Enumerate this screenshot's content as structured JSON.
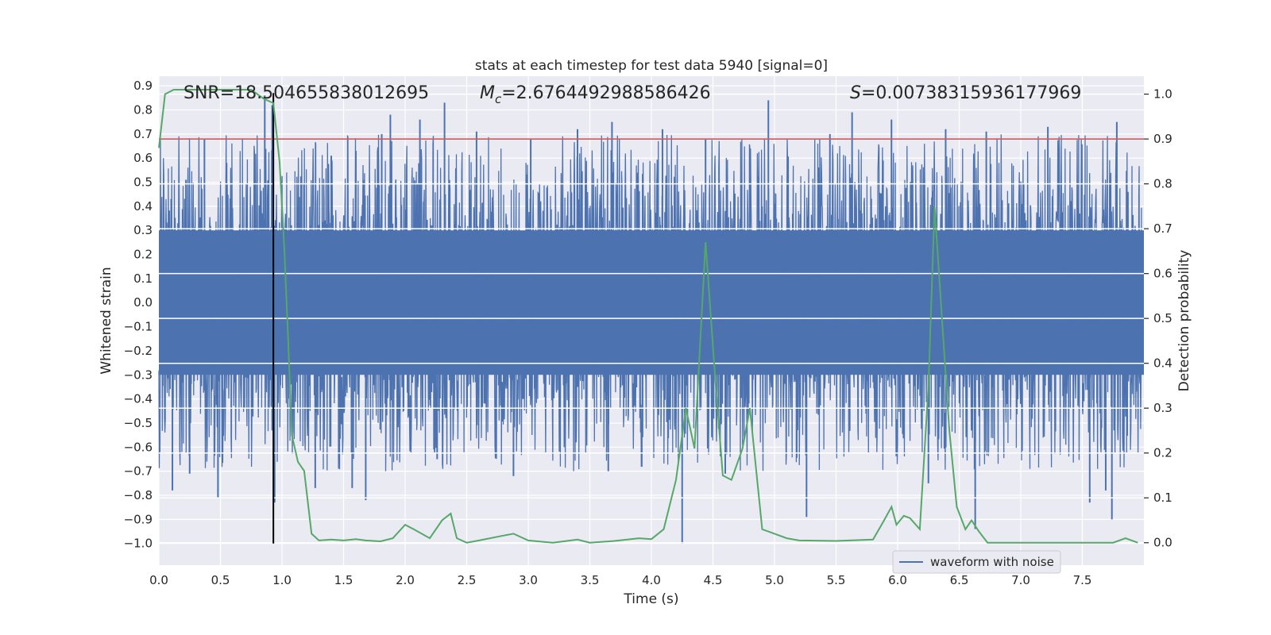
{
  "chart_data": {
    "type": "line",
    "title": "stats at each timestep for test data 5940 [signal=0]",
    "xlabel": "Time (s)",
    "ylabel": "Whitened strain",
    "y2label": "Detection probability",
    "xlim": [
      0.0,
      8.0
    ],
    "ylim": [
      -1.09,
      0.94
    ],
    "y2lim": [
      -0.05,
      1.04
    ],
    "x_ticks": [
      "0.0",
      "0.5",
      "1.0",
      "1.5",
      "2.0",
      "2.5",
      "3.0",
      "3.5",
      "4.0",
      "4.5",
      "5.0",
      "5.5",
      "6.0",
      "6.5",
      "7.0",
      "7.5"
    ],
    "x_tick_values": [
      0,
      0.5,
      1,
      1.5,
      2,
      2.5,
      3,
      3.5,
      4,
      4.5,
      5,
      5.5,
      6,
      6.5,
      7,
      7.5
    ],
    "y_ticks": [
      "0.9",
      "0.8",
      "0.7",
      "0.6",
      "0.5",
      "0.4",
      "0.3",
      "0.2",
      "0.1",
      "0.0",
      "−0.1",
      "−0.2",
      "−0.3",
      "−0.4",
      "−0.5",
      "−0.6",
      "−0.7",
      "−0.8",
      "−0.9",
      "−1.0"
    ],
    "y_tick_values": [
      0.9,
      0.8,
      0.7,
      0.6,
      0.5,
      0.4,
      0.3,
      0.2,
      0.1,
      0,
      -0.1,
      -0.2,
      -0.3,
      -0.4,
      -0.5,
      -0.6,
      -0.7,
      -0.8,
      -0.9,
      -1.0
    ],
    "y2_ticks": [
      "1.0",
      "0.9",
      "0.8",
      "0.7",
      "0.6",
      "0.5",
      "0.4",
      "0.3",
      "0.2",
      "0.1",
      "0.0"
    ],
    "y2_tick_values": [
      1.0,
      0.9,
      0.8,
      0.7,
      0.6,
      0.5,
      0.4,
      0.3,
      0.2,
      0.1,
      0.0
    ],
    "grid": true,
    "legend_position": "lower-right",
    "annotations": {
      "snr": "SNR=18.504655838012695",
      "mc_symbol": "M",
      "mc_sub": "c",
      "mc_value": "=2.6764492988586426",
      "s_symbol": "S",
      "s_value": "=0.00738315936177969"
    },
    "threshold": {
      "y2": 0.9,
      "color": "#c44e52"
    },
    "marker_line": {
      "x": 0.93,
      "y_from": -1.0,
      "y_to": 0.87,
      "color": "#000000"
    },
    "series": [
      {
        "name": "waveform with noise",
        "color": "#4c72b0",
        "kind": "dense-noise",
        "core_amplitude": 0.3,
        "spike_peaks": [
          {
            "x": 0.1,
            "y": 0.43
          },
          {
            "x": 0.22,
            "y": 0.51
          },
          {
            "x": 0.37,
            "y": 0.68
          },
          {
            "x": 0.55,
            "y": 0.58
          },
          {
            "x": 0.86,
            "y": 0.86
          },
          {
            "x": 0.92,
            "y": 0.82
          },
          {
            "x": 1.4,
            "y": 0.61
          },
          {
            "x": 1.6,
            "y": 0.63
          },
          {
            "x": 1.81,
            "y": 0.7
          },
          {
            "x": 1.88,
            "y": 0.78
          },
          {
            "x": 2.12,
            "y": 0.76
          },
          {
            "x": 2.32,
            "y": 0.83
          },
          {
            "x": 2.58,
            "y": 0.71
          },
          {
            "x": 3.02,
            "y": 0.68
          },
          {
            "x": 3.4,
            "y": 0.72
          },
          {
            "x": 3.68,
            "y": 0.75
          },
          {
            "x": 4.09,
            "y": 0.72
          },
          {
            "x": 4.44,
            "y": 0.68
          },
          {
            "x": 4.95,
            "y": 0.84
          },
          {
            "x": 5.45,
            "y": 0.7
          },
          {
            "x": 5.63,
            "y": 0.79
          },
          {
            "x": 5.95,
            "y": 0.76
          },
          {
            "x": 6.39,
            "y": 0.72
          },
          {
            "x": 6.72,
            "y": 0.71
          },
          {
            "x": 7.22,
            "y": 0.73
          },
          {
            "x": 7.78,
            "y": 0.75
          }
        ],
        "spike_troughs": [
          {
            "x": 0.11,
            "y": -0.78
          },
          {
            "x": 0.25,
            "y": -0.71
          },
          {
            "x": 0.48,
            "y": -0.81
          },
          {
            "x": 0.94,
            "y": -0.83
          },
          {
            "x": 1.27,
            "y": -0.77
          },
          {
            "x": 1.57,
            "y": -0.77
          },
          {
            "x": 1.68,
            "y": -0.82
          },
          {
            "x": 2.26,
            "y": -0.65
          },
          {
            "x": 2.88,
            "y": -0.72
          },
          {
            "x": 3.65,
            "y": -0.7
          },
          {
            "x": 4.25,
            "y": -1.0
          },
          {
            "x": 4.6,
            "y": -0.71
          },
          {
            "x": 5.26,
            "y": -0.89
          },
          {
            "x": 6.25,
            "y": -0.75
          },
          {
            "x": 6.63,
            "y": -0.94
          },
          {
            "x": 7.56,
            "y": -0.83
          },
          {
            "x": 7.69,
            "y": -0.78
          },
          {
            "x": 7.74,
            "y": -0.9
          }
        ]
      },
      {
        "name": "",
        "axis": "right",
        "color": "#55a868",
        "x": [
          0.0,
          0.05,
          0.12,
          0.6,
          0.75,
          0.85,
          0.93,
          0.98,
          1.02,
          1.05,
          1.08,
          1.13,
          1.18,
          1.24,
          1.3,
          1.4,
          1.5,
          1.6,
          1.68,
          1.8,
          1.9,
          2.0,
          2.07,
          2.2,
          2.3,
          2.37,
          2.42,
          2.5,
          2.6,
          2.78,
          2.88,
          3.0,
          3.2,
          3.4,
          3.5,
          3.7,
          3.9,
          4.0,
          4.1,
          4.2,
          4.28,
          4.35,
          4.44,
          4.52,
          4.58,
          4.65,
          4.74,
          4.8,
          4.9,
          5.0,
          5.1,
          5.2,
          5.5,
          5.8,
          5.88,
          5.95,
          5.99,
          6.05,
          6.1,
          6.18,
          6.25,
          6.3,
          6.36,
          6.42,
          6.48,
          6.55,
          6.6,
          6.66,
          6.73,
          7.0,
          7.5,
          7.75,
          7.85,
          7.95
        ],
        "y": [
          0.88,
          1.0,
          1.01,
          1.01,
          1.01,
          0.99,
          0.98,
          0.85,
          0.65,
          0.45,
          0.24,
          0.18,
          0.16,
          0.02,
          0.005,
          0.007,
          0.005,
          0.008,
          0.005,
          0.003,
          0.01,
          0.04,
          0.03,
          0.01,
          0.05,
          0.065,
          0.01,
          0.0,
          0.005,
          0.015,
          0.02,
          0.005,
          0.0,
          0.007,
          0.0,
          0.004,
          0.01,
          0.008,
          0.03,
          0.14,
          0.3,
          0.21,
          0.67,
          0.36,
          0.15,
          0.14,
          0.21,
          0.3,
          0.03,
          0.02,
          0.01,
          0.005,
          0.004,
          0.007,
          0.045,
          0.08,
          0.04,
          0.06,
          0.055,
          0.03,
          0.35,
          0.75,
          0.5,
          0.25,
          0.08,
          0.03,
          0.05,
          0.025,
          0.0,
          0.0,
          0.0,
          0.0,
          0.01,
          0.0
        ]
      }
    ]
  }
}
